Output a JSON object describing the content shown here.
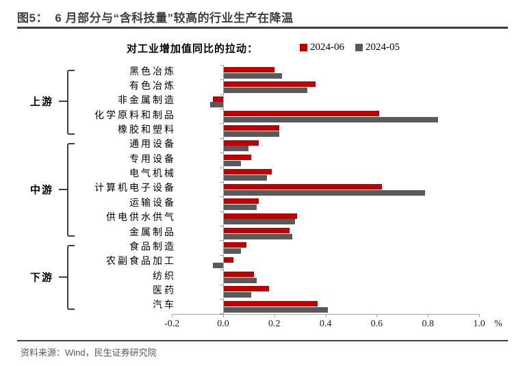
{
  "header": {
    "title": "图5：  6 月部分与“含科技量”较高的行业生产在降温"
  },
  "chart": {
    "caption": "对工业增加值同比的拉动："
  },
  "chart_data": {
    "type": "bar",
    "orientation": "horizontal",
    "title": "对工业增加值同比的拉动",
    "categories": [
      "黑色冶炼",
      "有色冶炼",
      "非金属制造",
      "化学原料和制品",
      "橡胶和塑料",
      "通用设备",
      "专用设备",
      "电气机械",
      "计算机电子设备",
      "运输设备",
      "供电供水供气",
      "金属制品",
      "食品制造",
      "农副食品加工",
      "纺织",
      "医药",
      "汽车"
    ],
    "groups": [
      {
        "label": "上游",
        "start": 0,
        "count": 5
      },
      {
        "label": "中游",
        "start": 5,
        "count": 7
      },
      {
        "label": "下游",
        "start": 12,
        "count": 5
      }
    ],
    "series": [
      {
        "name": "2024-06",
        "color": "#C00000",
        "values": [
          0.2,
          0.36,
          -0.04,
          0.61,
          0.22,
          0.14,
          0.11,
          0.19,
          0.62,
          0.14,
          0.29,
          0.26,
          0.09,
          0.04,
          0.12,
          0.18,
          0.37
        ]
      },
      {
        "name": "2024-05",
        "color": "#595959",
        "values": [
          0.23,
          0.33,
          -0.05,
          0.84,
          0.22,
          0.1,
          0.07,
          0.17,
          0.79,
          0.13,
          0.28,
          0.27,
          0.07,
          -0.04,
          0.13,
          0.11,
          0.41
        ]
      }
    ],
    "xlim": [
      -0.2,
      1.0
    ],
    "xticks": [
      -0.2,
      0.0,
      0.2,
      0.4,
      0.6,
      0.8,
      1.0
    ],
    "xunit": "%",
    "grid": false,
    "legend_position": "top"
  },
  "footer": {
    "source": "资料来源：Wind，民生证券研究院"
  }
}
